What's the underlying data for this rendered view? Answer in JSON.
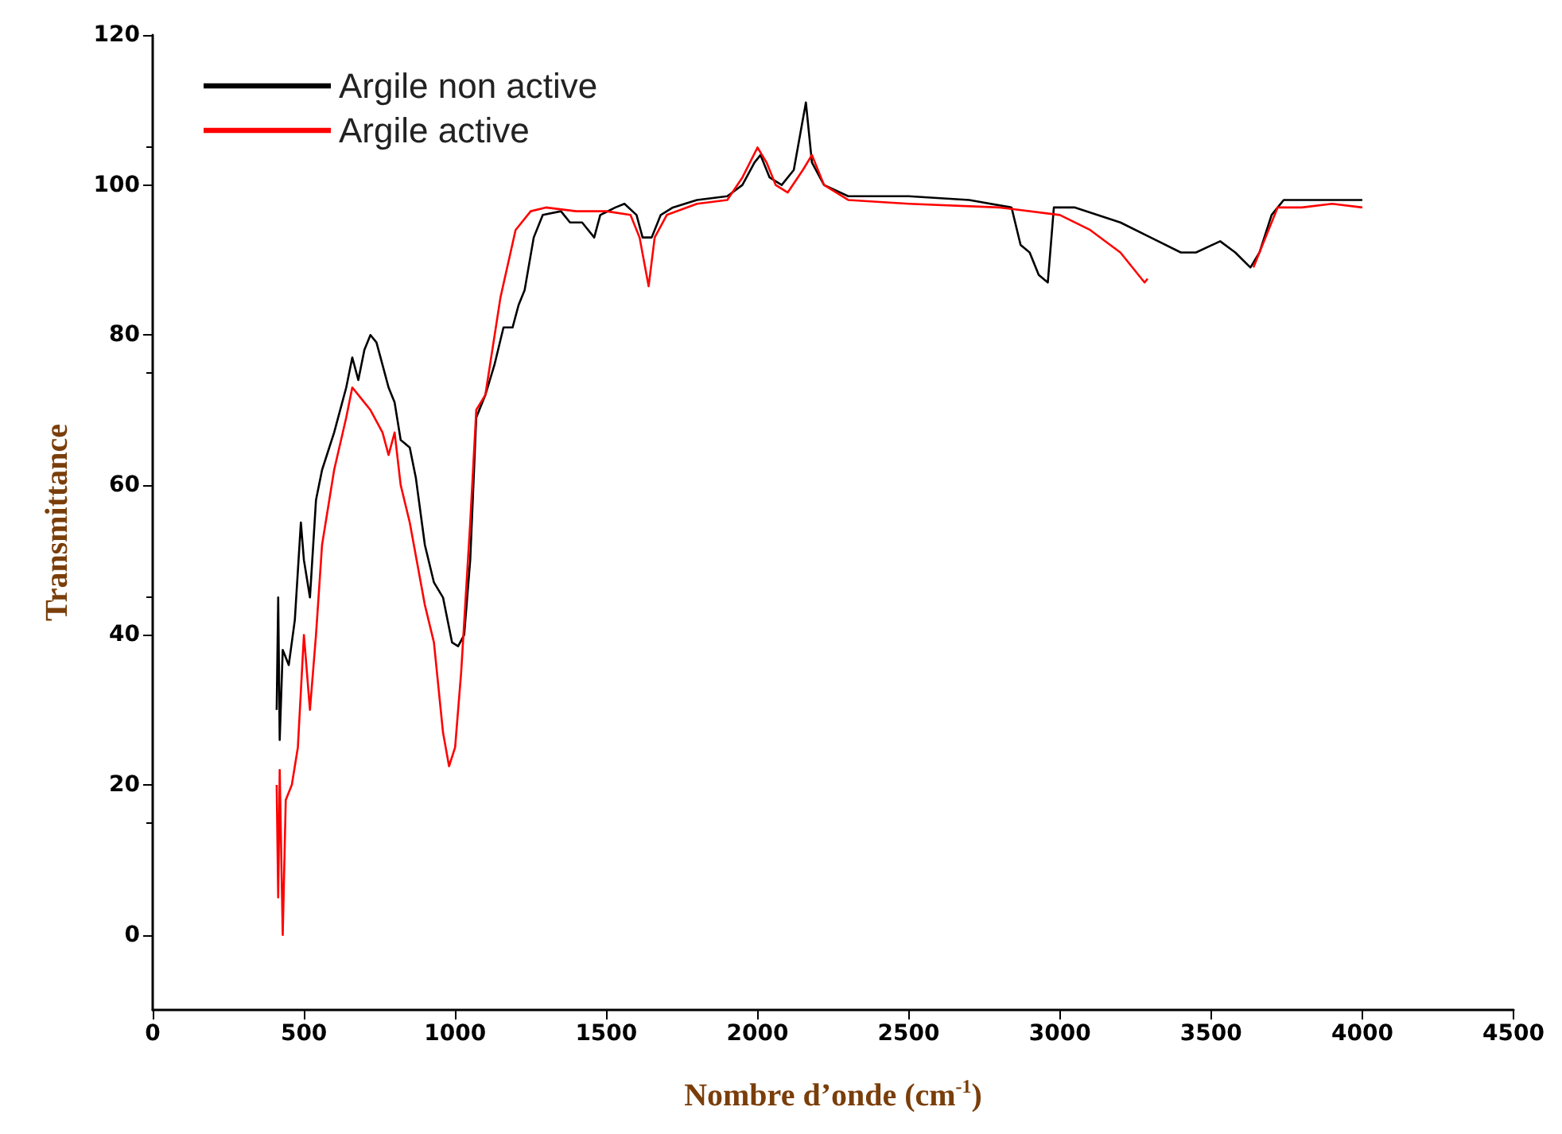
{
  "chart_data": {
    "type": "line",
    "xlabel": "Nombre d’onde (cm$^{-1}$)",
    "ylabel": "Transmittance",
    "xlim": [
      0,
      4500
    ],
    "xticks": [
      0,
      500,
      1000,
      1500,
      2000,
      2500,
      3000,
      3500,
      4000,
      4500
    ],
    "ylim": [
      -10,
      120
    ],
    "yticks": [
      0,
      20,
      40,
      60,
      80,
      100,
      120
    ],
    "grid": false,
    "legend": "top left",
    "marker": "none",
    "line_style": "solid",
    "series": [
      {
        "name": "Argile non active",
        "color": "#000000",
        "x": [
          410,
          415,
          420,
          430,
          450,
          470,
          490,
          500,
          520,
          540,
          560,
          600,
          640,
          660,
          680,
          700,
          720,
          740,
          760,
          780,
          800,
          820,
          850,
          870,
          900,
          930,
          960,
          990,
          1010,
          1030,
          1050,
          1070,
          1100,
          1130,
          1160,
          1190,
          1210,
          1230,
          1260,
          1290,
          1350,
          1380,
          1420,
          1460,
          1480,
          1530,
          1560,
          1600,
          1620,
          1650,
          1680,
          1720,
          1800,
          1900,
          1950,
          1990,
          2010,
          2040,
          2080,
          2120,
          2160,
          2180,
          2220,
          2300,
          2500,
          2700,
          2840,
          2870,
          2900,
          2930,
          2960,
          2980,
          3050,
          3200,
          3300,
          3400,
          3450,
          3530,
          3580,
          3630,
          3660,
          3700,
          3740,
          3800,
          3900,
          4000
        ],
        "values": [
          30,
          45,
          26,
          38,
          36,
          42,
          55,
          50,
          45,
          58,
          62,
          67,
          73,
          77,
          74,
          78,
          80,
          79,
          76,
          73,
          71,
          66,
          65,
          61,
          52,
          47,
          45,
          39,
          38.5,
          40,
          50,
          69,
          72,
          76,
          81,
          81,
          84,
          86,
          93,
          96,
          96.5,
          95,
          95,
          93,
          96,
          97,
          97.5,
          96,
          93,
          93,
          96,
          97,
          98,
          98.5,
          100,
          103,
          104,
          101,
          100,
          102,
          111,
          103,
          100,
          98.5,
          98.5,
          98,
          97,
          92,
          91,
          88,
          87,
          97,
          97,
          95,
          93,
          91,
          91,
          92.5,
          91,
          89,
          91,
          96,
          98,
          98,
          98,
          98
        ]
      },
      {
        "name": "Argile active",
        "color": "#ff0000",
        "x": [
          410,
          415,
          420,
          430,
          440,
          460,
          480,
          500,
          520,
          540,
          560,
          600,
          640,
          660,
          680,
          720,
          760,
          780,
          800,
          820,
          850,
          900,
          930,
          960,
          980,
          1000,
          1020,
          1050,
          1070,
          1100,
          1150,
          1200,
          1250,
          1300,
          1400,
          1500,
          1580,
          1610,
          1640,
          1660,
          1700,
          1800,
          1900,
          1950,
          2000,
          2030,
          2060,
          2100,
          2150,
          2180,
          2220,
          2300,
          2500,
          2800,
          3000,
          3100,
          3200,
          3280,
          3290,
          3460,
          3640,
          3680,
          3720,
          3800,
          3900,
          4000
        ],
        "values": [
          20,
          5,
          22,
          0,
          18,
          20,
          25,
          40,
          30,
          40,
          52,
          62,
          69,
          73,
          72,
          70,
          67,
          64,
          67,
          60,
          55,
          44,
          39,
          27,
          22.5,
          25,
          35,
          55,
          70,
          72,
          85,
          94,
          96.5,
          97,
          96.5,
          96.5,
          96,
          93,
          86.5,
          93,
          96,
          97.5,
          98,
          101,
          105,
          103,
          100,
          99,
          102,
          104,
          100,
          98,
          97.5,
          97,
          96,
          94,
          91,
          87,
          87.5,
          null,
          89,
          93,
          97,
          97,
          97.5,
          97
        ]
      }
    ]
  }
}
